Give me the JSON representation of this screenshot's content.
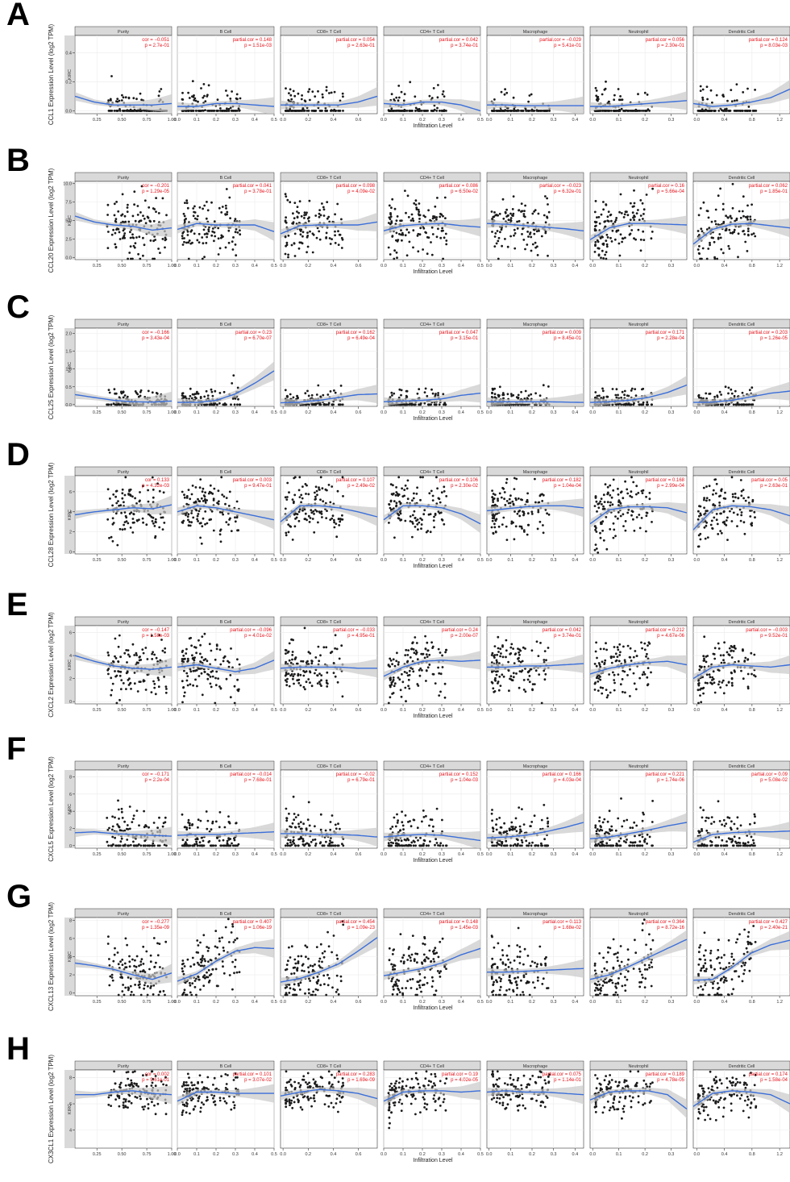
{
  "colors": {
    "point": "#1a1a1a",
    "smooth": "#3b6fd9",
    "band": "#c9c9c9",
    "strip": "#d9d9d9",
    "annotation": "#e5131b",
    "grid": "#ebebeb",
    "frame": "#333333"
  },
  "xlabel": "Infiltration Level",
  "cancer": "KIRC",
  "panel_titles": [
    "Purity",
    "B Cell",
    "CD8+ T Cell",
    "CD4+ T Cell",
    "Macrophage",
    "Neutrophil",
    "Dendritic Cell"
  ],
  "x_axes": [
    {
      "ticks": [
        0.25,
        0.5,
        0.75,
        1.0
      ],
      "labels": [
        "0.25",
        "0.50",
        "0.75",
        "1.00"
      ],
      "range": [
        0.03,
        1.0
      ]
    },
    {
      "ticks": [
        0.0,
        0.1,
        0.2,
        0.3,
        0.4,
        0.5
      ],
      "labels": [
        "0.0",
        "0.1",
        "0.2",
        "0.3",
        "0.4",
        "0.5"
      ],
      "range": [
        0.0,
        0.5
      ]
    },
    {
      "ticks": [
        0.0,
        0.2,
        0.4,
        0.6
      ],
      "labels": [
        "0.0",
        "0.2",
        "0.4",
        "0.6"
      ],
      "range": [
        -0.02,
        0.75
      ]
    },
    {
      "ticks": [
        0.0,
        0.1,
        0.2,
        0.3,
        0.4,
        0.5
      ],
      "labels": [
        "0.0",
        "0.1",
        "0.2",
        "0.3",
        "0.4",
        "0.5"
      ],
      "range": [
        0.0,
        0.5
      ]
    },
    {
      "ticks": [
        0.0,
        0.1,
        0.2,
        0.3,
        0.4
      ],
      "labels": [
        "0.0",
        "0.1",
        "0.2",
        "0.3",
        "0.4"
      ],
      "range": [
        -0.01,
        0.44
      ]
    },
    {
      "ticks": [
        0.0,
        0.1,
        0.2,
        0.3
      ],
      "labels": [
        "0.0",
        "0.1",
        "0.2",
        "0.3"
      ],
      "range": [
        -0.01,
        0.36
      ]
    },
    {
      "ticks": [
        0.0,
        0.4,
        0.8,
        1.2
      ],
      "labels": [
        "0.0",
        "0.4",
        "0.8",
        "1.2"
      ],
      "range": [
        -0.05,
        1.35
      ]
    }
  ],
  "chart_data": [
    {
      "type": "scatter",
      "letter": "A",
      "ylabel": "CCL1 Expression Level (log2 TPM)",
      "ylim": [
        -0.02,
        0.52
      ],
      "y_ticks": [
        0.0,
        0.2,
        0.4
      ],
      "y_tick_labels": [
        "0.0",
        "0.2",
        "0.4"
      ],
      "y_mean": 0.045,
      "y_spread": 0.07,
      "zero_frac": 0.6,
      "stats": [
        {
          "line1": "cor = −0.051",
          "line2": "p = 2.7e-01"
        },
        {
          "line1": "partial.cor = 0.148",
          "line2": "p = 1.51e-03"
        },
        {
          "line1": "partial.cor = 0.054",
          "line2": "p = 2.63e-01"
        },
        {
          "line1": "partial.cor = 0.042",
          "line2": "p = 3.74e-01"
        },
        {
          "line1": "partial.cor = −0.029",
          "line2": "p = 5.41e-01"
        },
        {
          "line1": "partial.cor = 0.056",
          "line2": "p = 2.30e-01"
        },
        {
          "line1": "partial.cor = 0.124",
          "line2": "p = 8.03e-03"
        }
      ],
      "smooth": [
        [
          0.1,
          0.06,
          0.04,
          0.04,
          0.04,
          0.05
        ],
        [
          0.03,
          0.03,
          0.05,
          0.05,
          0.04,
          0.03
        ],
        [
          0.04,
          0.04,
          0.04,
          0.04,
          0.06,
          0.1
        ],
        [
          0.05,
          0.04,
          0.06,
          0.06,
          0.04,
          0.0
        ],
        [
          0.04,
          0.04,
          0.035,
          0.035,
          0.035,
          0.035
        ],
        [
          0.03,
          0.03,
          0.04,
          0.05,
          0.06,
          0.07
        ],
        [
          0.05,
          0.03,
          0.04,
          0.06,
          0.09,
          0.15
        ]
      ]
    },
    {
      "type": "scatter",
      "letter": "B",
      "ylabel": "CCL20 Expression Level (log2 TPM)",
      "ylim": [
        -0.3,
        10.3
      ],
      "y_ticks": [
        0.0,
        2.5,
        5.0,
        7.5,
        10.0
      ],
      "y_tick_labels": [
        "0.0",
        "2.5",
        "5.0",
        "7.5",
        "10.0"
      ],
      "y_mean": 4.2,
      "y_spread": 1.9,
      "zero_frac": 0.0,
      "stats": [
        {
          "line1": "cor = −0.201",
          "line2": "p = 1.29e-05"
        },
        {
          "line1": "partial.cor = 0.041",
          "line2": "p = 3.78e-01"
        },
        {
          "line1": "partial.cor = 0.098",
          "line2": "p = 4.09e-02"
        },
        {
          "line1": "partial.cor = 0.086",
          "line2": "p = 6.50e-02"
        },
        {
          "line1": "partial.cor = −0.023",
          "line2": "p = 6.32e-01"
        },
        {
          "line1": "partial.cor = 0.16",
          "line2": "p = 5.66e-04"
        },
        {
          "line1": "partial.cor = 0.062",
          "line2": "p = 1.85e-01"
        }
      ],
      "smooth": [
        [
          5.6,
          4.8,
          4.4,
          4.2,
          3.7,
          4.0
        ],
        [
          3.8,
          4.6,
          4.4,
          4.4,
          4.4,
          3.5
        ],
        [
          3.2,
          4.3,
          4.4,
          4.4,
          4.4,
          4.8
        ],
        [
          3.6,
          4.3,
          4.5,
          4.6,
          4.3,
          4.1
        ],
        [
          4.6,
          4.5,
          4.3,
          4.1,
          3.9,
          3.6
        ],
        [
          2.4,
          4.0,
          4.6,
          4.6,
          4.5,
          4.4
        ],
        [
          1.8,
          3.8,
          4.5,
          4.6,
          4.3,
          4.0
        ]
      ]
    },
    {
      "type": "scatter",
      "letter": "C",
      "ylabel": "CCL25 Expression Level (log2 TPM)",
      "ylim": [
        -0.05,
        2.15
      ],
      "y_ticks": [
        0.0,
        0.5,
        1.0,
        1.5,
        2.0
      ],
      "y_tick_labels": [
        "0.0",
        "0.5",
        "1.0",
        "1.5",
        "2.0"
      ],
      "y_mean": 0.12,
      "y_spread": 0.16,
      "zero_frac": 0.35,
      "stats": [
        {
          "line1": "cor = −0.166",
          "line2": "p = 3.43e-04"
        },
        {
          "line1": "partial.cor = 0.23",
          "line2": "p = 6.70e-07"
        },
        {
          "line1": "partial.cor = 0.162",
          "line2": "p = 6.49e-04"
        },
        {
          "line1": "partial.cor = 0.047",
          "line2": "p = 3.15e-01"
        },
        {
          "line1": "partial.cor = 0.009",
          "line2": "p = 8.45e-01"
        },
        {
          "line1": "partial.cor = 0.171",
          "line2": "p = 2.28e-04"
        },
        {
          "line1": "partial.cor = 0.203",
          "line2": "p = 1.26e-05"
        }
      ],
      "smooth": [
        [
          0.28,
          0.2,
          0.12,
          0.08,
          0.07,
          0.1
        ],
        [
          0.06,
          0.06,
          0.12,
          0.3,
          0.6,
          0.95
        ],
        [
          0.05,
          0.07,
          0.12,
          0.2,
          0.28,
          0.3
        ],
        [
          0.08,
          0.1,
          0.12,
          0.16,
          0.26,
          0.32
        ],
        [
          0.08,
          0.08,
          0.08,
          0.08,
          0.07,
          0.06
        ],
        [
          0.06,
          0.08,
          0.12,
          0.2,
          0.34,
          0.55
        ],
        [
          0.06,
          0.07,
          0.12,
          0.22,
          0.32,
          0.38
        ]
      ]
    },
    {
      "type": "scatter",
      "letter": "D",
      "ylabel": "CCL28 Expression Level (log2 TPM)",
      "ylim": [
        -0.2,
        7.6
      ],
      "y_ticks": [
        0,
        2,
        4,
        6
      ],
      "y_tick_labels": [
        "0",
        "2",
        "4",
        "6"
      ],
      "y_mean": 4.3,
      "y_spread": 1.4,
      "zero_frac": 0.0,
      "stats": [
        {
          "line1": "cor = 0.133",
          "line2": "p = 4.32e-03"
        },
        {
          "line1": "partial.cor = 0.003",
          "line2": "p = 9.47e-01"
        },
        {
          "line1": "partial.cor = 0.107",
          "line2": "p = 2.49e-02"
        },
        {
          "line1": "partial.cor = 0.106",
          "line2": "p = 2.30e-02"
        },
        {
          "line1": "partial.cor = 0.182",
          "line2": "p = 1.04e-04"
        },
        {
          "line1": "partial.cor = 0.168",
          "line2": "p = 2.99e-04"
        },
        {
          "line1": "partial.cor = 0.05",
          "line2": "p = 2.63e-01"
        }
      ],
      "smooth": [
        [
          3.7,
          4.0,
          4.2,
          4.4,
          4.3,
          4.7
        ],
        [
          4.0,
          4.6,
          4.4,
          4.0,
          3.6,
          3.2
        ],
        [
          3.0,
          4.6,
          4.6,
          4.4,
          4.0,
          3.5
        ],
        [
          3.2,
          4.6,
          4.6,
          4.4,
          3.8,
          2.8
        ],
        [
          4.1,
          4.3,
          4.5,
          4.6,
          4.6,
          4.4
        ],
        [
          2.8,
          4.2,
          4.5,
          4.5,
          4.4,
          3.9
        ],
        [
          2.2,
          4.2,
          4.6,
          4.5,
          4.2,
          3.6
        ]
      ]
    },
    {
      "type": "scatter",
      "letter": "E",
      "ylabel": "CXCL2 Expression Level (log2 TPM)",
      "ylim": [
        -0.2,
        6.6
      ],
      "y_ticks": [
        0,
        2,
        4,
        6
      ],
      "y_tick_labels": [
        "0",
        "2",
        "4",
        "6"
      ],
      "y_mean": 3.0,
      "y_spread": 1.2,
      "zero_frac": 0.0,
      "stats": [
        {
          "line1": "cor = −0.147",
          "line2": "p = 1.58e-03"
        },
        {
          "line1": "partial.cor = −0.096",
          "line2": "p = 4.01e-02"
        },
        {
          "line1": "partial.cor = −0.033",
          "line2": "p = 4.95e-01"
        },
        {
          "line1": "partial.cor = 0.24",
          "line2": "p = 2.00e-07"
        },
        {
          "line1": "partial.cor = 0.042",
          "line2": "p = 3.74e-01"
        },
        {
          "line1": "partial.cor = 0.212",
          "line2": "p = 4.67e-06"
        },
        {
          "line1": "partial.cor = −0.003",
          "line2": "p = 9.52e-01"
        }
      ],
      "smooth": [
        [
          4.0,
          3.5,
          3.1,
          2.9,
          2.8,
          3.0
        ],
        [
          3.0,
          3.2,
          2.9,
          2.6,
          2.9,
          3.6
        ],
        [
          2.9,
          3.0,
          3.0,
          3.0,
          2.9,
          2.9
        ],
        [
          2.2,
          3.0,
          3.5,
          3.6,
          3.5,
          3.6
        ],
        [
          3.0,
          3.0,
          3.1,
          3.1,
          3.2,
          3.3
        ],
        [
          2.4,
          2.9,
          3.2,
          3.4,
          3.5,
          3.2
        ],
        [
          2.0,
          3.0,
          3.2,
          3.1,
          3.0,
          3.2
        ]
      ]
    },
    {
      "type": "scatter",
      "letter": "F",
      "ylabel": "CXCL5 Expression Level (log2 TPM)",
      "ylim": [
        -0.3,
        8.8
      ],
      "y_ticks": [
        0,
        2,
        4,
        6,
        8
      ],
      "y_tick_labels": [
        "0",
        "2",
        "4",
        "6",
        "8"
      ],
      "y_mean": 0.9,
      "y_spread": 1.5,
      "zero_frac": 0.3,
      "stats": [
        {
          "line1": "cor = −0.171",
          "line2": "p = 2.2e-04"
        },
        {
          "line1": "partial.cor = −0.014",
          "line2": "p = 7.68e-01"
        },
        {
          "line1": "partial.cor = −0.02",
          "line2": "p = 6.79e-01"
        },
        {
          "line1": "partial.cor = 0.152",
          "line2": "p = 1.04e-03"
        },
        {
          "line1": "partial.cor = 0.166",
          "line2": "p = 4.03e-04"
        },
        {
          "line1": "partial.cor = 0.221",
          "line2": "p = 1.74e-06"
        },
        {
          "line1": "partial.cor = 0.09",
          "line2": "p = 5.08e-02"
        }
      ],
      "smooth": [
        [
          1.5,
          1.6,
          1.4,
          1.3,
          1.2,
          1.1
        ],
        [
          1.2,
          1.3,
          1.3,
          1.4,
          1.5,
          1.6
        ],
        [
          1.4,
          1.4,
          1.3,
          1.3,
          1.2,
          1.0
        ],
        [
          1.0,
          1.2,
          1.3,
          1.2,
          0.9,
          0.6
        ],
        [
          0.9,
          1.0,
          1.2,
          1.6,
          2.1,
          2.7
        ],
        [
          0.8,
          1.0,
          1.4,
          1.8,
          2.3,
          2.7
        ],
        [
          0.4,
          1.3,
          1.5,
          1.6,
          1.6,
          1.7
        ]
      ]
    },
    {
      "type": "scatter",
      "letter": "G",
      "ylabel": "CXCL13 Expression Level (log2 TPM)",
      "ylim": [
        -0.3,
        8.3
      ],
      "y_ticks": [
        0,
        2,
        4,
        6,
        8
      ],
      "y_tick_labels": [
        "0",
        "2",
        "4",
        "6",
        "8"
      ],
      "y_mean": 2.4,
      "y_spread": 1.6,
      "zero_frac": 0.0,
      "stats": [
        {
          "line1": "cor = −0.277",
          "line2": "p = 1.35e-09"
        },
        {
          "line1": "partial.cor = 0.407",
          "line2": "p = 1.06e-19"
        },
        {
          "line1": "partial.cor = 0.454",
          "line2": "p = 1.09e-23"
        },
        {
          "line1": "partial.cor = 0.148",
          "line2": "p = 1.45e-03"
        },
        {
          "line1": "partial.cor = 0.113",
          "line2": "p = 1.68e-02"
        },
        {
          "line1": "partial.cor = 0.364",
          "line2": "p = 8.72e-16"
        },
        {
          "line1": "partial.cor = 0.427",
          "line2": "p = 2.40e-21"
        }
      ],
      "smooth": [
        [
          3.3,
          3.0,
          2.6,
          2.0,
          1.5,
          2.2
        ],
        [
          1.3,
          2.1,
          3.5,
          4.6,
          5.0,
          4.9
        ],
        [
          1.2,
          1.6,
          2.3,
          3.2,
          4.6,
          6.1
        ],
        [
          1.9,
          2.3,
          2.7,
          3.3,
          4.2,
          4.9
        ],
        [
          2.3,
          2.3,
          2.4,
          2.5,
          2.6,
          2.7
        ],
        [
          1.5,
          2.0,
          2.9,
          3.9,
          4.9,
          5.9
        ],
        [
          1.4,
          1.5,
          2.8,
          4.4,
          5.3,
          5.8
        ]
      ]
    },
    {
      "type": "scatter",
      "letter": "H",
      "ylabel": "CX3CL1 Expression Level (log2 TPM)",
      "ylim": [
        2.6,
        8.6
      ],
      "y_ticks": [
        4,
        6,
        8
      ],
      "y_tick_labels": [
        "4",
        "6",
        "8"
      ],
      "y_mean": 6.7,
      "y_spread": 0.75,
      "zero_frac": 0.0,
      "stats": [
        {
          "line1": "cor = 0.002",
          "line2": "p = 9.61e-01"
        },
        {
          "line1": "partial.cor = 0.101",
          "line2": "p = 3.07e-02"
        },
        {
          "line1": "partial.cor = 0.283",
          "line2": "p = 1.69e-09"
        },
        {
          "line1": "partial.cor = 0.19",
          "line2": "p = 4.02e-05"
        },
        {
          "line1": "partial.cor = 0.075",
          "line2": "p = 1.14e-01"
        },
        {
          "line1": "partial.cor = 0.189",
          "line2": "p = 4.78e-05"
        },
        {
          "line1": "partial.cor = 0.174",
          "line2": "p = 1.58e-04"
        }
      ],
      "smooth": [
        [
          6.7,
          6.7,
          6.9,
          7.0,
          6.8,
          6.7
        ],
        [
          6.2,
          6.9,
          6.9,
          6.8,
          6.8,
          6.8
        ],
        [
          6.6,
          6.9,
          7.1,
          7.0,
          6.8,
          6.4
        ],
        [
          6.2,
          6.9,
          7.0,
          7.0,
          6.9,
          7.0
        ],
        [
          6.9,
          7.0,
          6.9,
          6.9,
          6.8,
          6.7
        ],
        [
          6.3,
          6.9,
          7.0,
          7.0,
          6.7,
          5.6
        ],
        [
          5.8,
          6.8,
          7.0,
          6.9,
          6.7,
          6.0
        ]
      ]
    }
  ]
}
